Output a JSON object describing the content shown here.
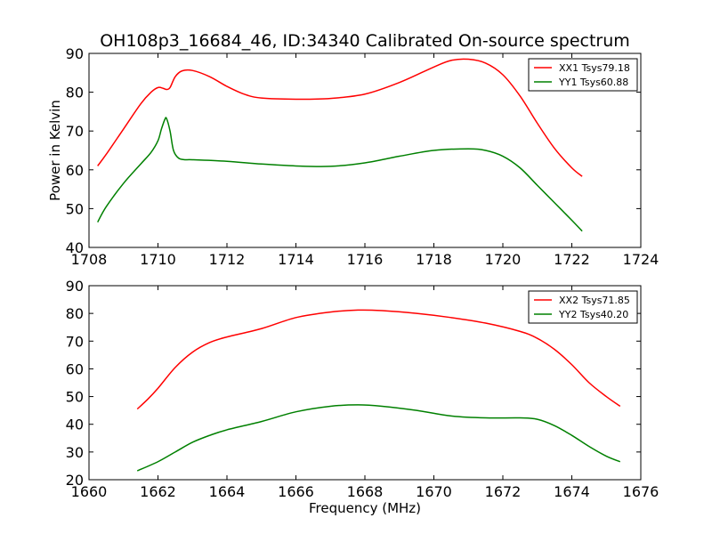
{
  "chart_data": [
    {
      "type": "line",
      "title": "OH108p3_16684_46, ID:34340 Calibrated On-source spectrum",
      "xlabel": "",
      "ylabel": "Power in Kelvin",
      "xlim": [
        1708,
        1724
      ],
      "ylim": [
        40,
        90
      ],
      "xticks": [
        "1708",
        "1710",
        "1712",
        "1714",
        "1716",
        "1718",
        "1720",
        "1722",
        "1724"
      ],
      "yticks": [
        "40",
        "50",
        "60",
        "70",
        "80",
        "90"
      ],
      "legend_position": "top-right",
      "series": [
        {
          "name": "XX1 Tsys79.18",
          "color": "#ff0000",
          "x": [
            1708.25,
            1708.5,
            1709.0,
            1709.5,
            1709.8,
            1710.0,
            1710.15,
            1710.25,
            1710.35,
            1710.5,
            1710.7,
            1711.0,
            1711.5,
            1712.0,
            1712.5,
            1713.0,
            1714.0,
            1715.0,
            1716.0,
            1717.0,
            1718.0,
            1718.5,
            1719.0,
            1719.5,
            1720.0,
            1720.5,
            1721.0,
            1721.5,
            1722.0,
            1722.3
          ],
          "y": [
            61.0,
            64.0,
            70.5,
            77.0,
            80.0,
            81.2,
            81.0,
            80.7,
            81.2,
            84.0,
            85.5,
            85.6,
            84.0,
            81.5,
            79.5,
            78.5,
            78.2,
            78.4,
            79.5,
            82.5,
            86.5,
            88.2,
            88.5,
            87.5,
            84.5,
            79.0,
            72.0,
            65.5,
            60.5,
            58.3
          ]
        },
        {
          "name": "YY1 Tsys60.88",
          "color": "#008000",
          "x": [
            1708.25,
            1708.5,
            1709.0,
            1709.5,
            1709.8,
            1710.0,
            1710.1,
            1710.2,
            1710.25,
            1710.35,
            1710.45,
            1710.6,
            1710.8,
            1711.0,
            1712.0,
            1713.0,
            1714.0,
            1715.0,
            1716.0,
            1717.0,
            1718.0,
            1719.0,
            1719.5,
            1720.0,
            1720.5,
            1721.0,
            1721.5,
            1722.0,
            1722.3
          ],
          "y": [
            46.5,
            50.5,
            56.5,
            61.5,
            64.5,
            67.5,
            70.5,
            73.0,
            73.2,
            70.0,
            65.0,
            63.0,
            62.6,
            62.6,
            62.2,
            61.5,
            61.0,
            60.9,
            61.8,
            63.5,
            65.0,
            65.4,
            65.0,
            63.5,
            60.5,
            56.0,
            51.5,
            47.0,
            44.2
          ]
        }
      ]
    },
    {
      "type": "line",
      "title": "",
      "xlabel": "Frequency (MHz)",
      "ylabel": "",
      "xlim": [
        1660,
        1676
      ],
      "ylim": [
        20,
        90
      ],
      "xticks": [
        "1660",
        "1662",
        "1664",
        "1666",
        "1668",
        "1670",
        "1672",
        "1674",
        "1676"
      ],
      "yticks": [
        "20",
        "30",
        "40",
        "50",
        "60",
        "70",
        "80",
        "90"
      ],
      "legend_position": "top-right",
      "series": [
        {
          "name": "XX2 Tsys71.85",
          "color": "#ff0000",
          "x": [
            1661.4,
            1661.7,
            1662.0,
            1662.5,
            1663.0,
            1663.5,
            1664.0,
            1665.0,
            1666.0,
            1667.0,
            1667.8,
            1668.5,
            1669.5,
            1670.5,
            1671.5,
            1672.5,
            1673.0,
            1673.5,
            1674.0,
            1674.5,
            1675.0,
            1675.4
          ],
          "y": [
            45.5,
            49.0,
            53.0,
            60.5,
            66.0,
            69.5,
            71.5,
            74.5,
            78.5,
            80.5,
            81.2,
            81.0,
            80.0,
            78.5,
            76.5,
            73.5,
            71.0,
            67.0,
            61.5,
            55.0,
            50.0,
            46.5
          ]
        },
        {
          "name": "YY2 Tsys40.20",
          "color": "#008000",
          "x": [
            1661.4,
            1662.0,
            1662.5,
            1663.0,
            1663.5,
            1664.0,
            1665.0,
            1666.0,
            1667.0,
            1667.8,
            1668.5,
            1669.5,
            1670.5,
            1671.5,
            1672.5,
            1673.0,
            1673.5,
            1674.0,
            1674.5,
            1675.0,
            1675.4
          ],
          "y": [
            23.2,
            26.5,
            30.0,
            33.5,
            36.0,
            38.0,
            41.0,
            44.5,
            46.5,
            47.0,
            46.5,
            45.0,
            43.0,
            42.3,
            42.3,
            41.8,
            39.5,
            36.0,
            32.0,
            28.5,
            26.5
          ]
        }
      ]
    }
  ]
}
